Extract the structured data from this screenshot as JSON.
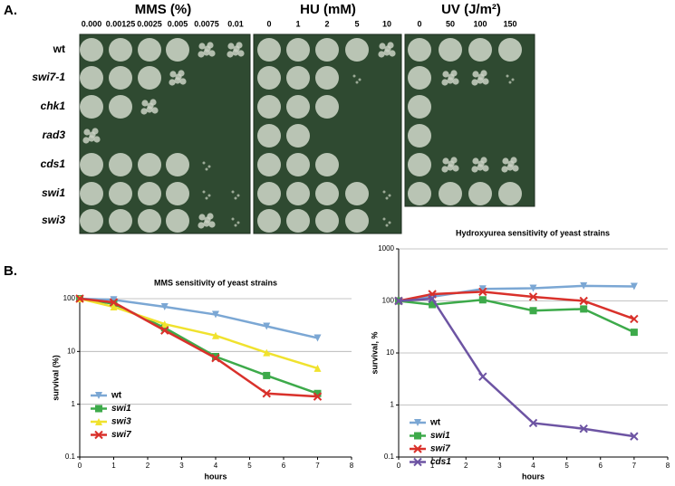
{
  "panel_a": {
    "label": "A.",
    "strains": [
      "wt",
      "swi7-1",
      "chk1",
      "rad3",
      "cds1",
      "swi1",
      "swi3"
    ],
    "groups": [
      {
        "title": "MMS (%)",
        "doses": [
          "0.000",
          "0.00125",
          "0.0025",
          "0.005",
          "0.0075",
          "0.01"
        ]
      },
      {
        "title": "HU (mM)",
        "doses": [
          "0",
          "1",
          "2",
          "5",
          "10"
        ]
      },
      {
        "title": "UV (J/m²)",
        "doses": [
          "0",
          "50",
          "100",
          "150"
        ]
      }
    ]
  },
  "panel_b_label": "B.",
  "chart_data": [
    {
      "type": "line",
      "title": "MMS sensitivity of yeast strains",
      "x_label": "hours",
      "y_label": "survival (%)",
      "x": [
        0,
        1,
        2.5,
        4,
        5.5,
        7
      ],
      "xlim": [
        0,
        8
      ],
      "xticks": [
        0,
        1,
        2,
        3,
        4,
        5,
        6,
        7,
        8
      ],
      "ylim": [
        0.1,
        100
      ],
      "yticks": [
        0.1,
        1,
        10,
        100
      ],
      "log_y": true,
      "grid": true,
      "legend": "lower left",
      "series": [
        {
          "name": "wt",
          "color": "#7ba7d4",
          "marker": "triangle-down",
          "values": [
            100,
            95,
            70,
            50,
            30,
            18
          ]
        },
        {
          "name": "swi1",
          "color": "#3daa4a",
          "marker": "square",
          "values": [
            100,
            80,
            28,
            8,
            3.5,
            1.6
          ]
        },
        {
          "name": "swi3",
          "color": "#f0e22e",
          "marker": "triangle",
          "values": [
            100,
            70,
            33,
            20,
            9.5,
            4.8
          ]
        },
        {
          "name": "swi7",
          "color": "#d9312b",
          "marker": "x",
          "values": [
            100,
            85,
            25,
            7.5,
            1.6,
            1.4
          ]
        }
      ]
    },
    {
      "type": "line",
      "title": "Hydroxyurea sensitivity of yeast strains",
      "x_label": "hours",
      "y_label": "survival, %",
      "x": [
        0,
        1,
        2.5,
        4,
        5.5,
        7
      ],
      "xlim": [
        0,
        8
      ],
      "xticks": [
        0,
        1,
        2,
        3,
        4,
        5,
        6,
        7,
        8
      ],
      "ylim": [
        0.1,
        1000
      ],
      "yticks": [
        0.1,
        1,
        10,
        100,
        1000
      ],
      "log_y": true,
      "grid": true,
      "legend": "center left",
      "series": [
        {
          "name": "wt",
          "color": "#7ba7d4",
          "marker": "triangle-down",
          "values": [
            100,
            120,
            170,
            175,
            195,
            190
          ]
        },
        {
          "name": "swi1",
          "color": "#3daa4a",
          "marker": "square",
          "values": [
            100,
            85,
            105,
            65,
            70,
            25
          ]
        },
        {
          "name": "swi7",
          "color": "#d9312b",
          "marker": "x",
          "values": [
            100,
            135,
            150,
            120,
            100,
            45
          ]
        },
        {
          "name": "cds1",
          "color": "#6d54a3",
          "marker": "x",
          "values": [
            100,
            110,
            3.5,
            0.45,
            0.35,
            0.25
          ]
        }
      ]
    }
  ]
}
